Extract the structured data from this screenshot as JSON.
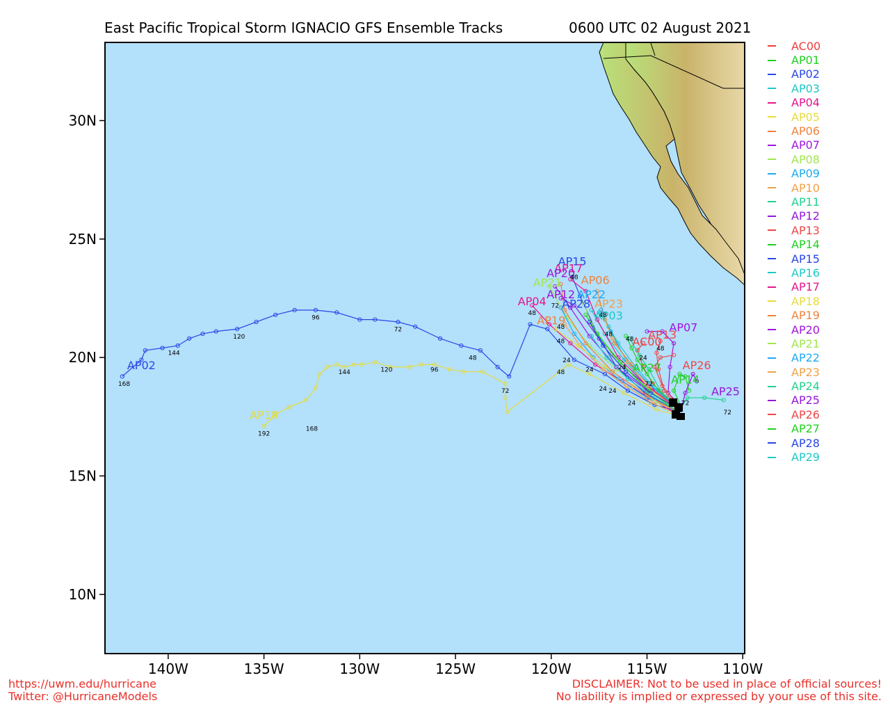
{
  "header": {
    "title": "East Pacific Tropical Storm IGNACIO GFS Ensemble Tracks",
    "datetime": "0600 UTC 02 August 2021"
  },
  "map": {
    "lon_range": [
      -143.3,
      -109.9
    ],
    "lat_range": [
      7.5,
      33.3
    ],
    "ocean_color": "#b3e0fb",
    "lon_ticks": [
      {
        "value": -140,
        "label": "140W"
      },
      {
        "value": -135,
        "label": "135W"
      },
      {
        "value": -130,
        "label": "130W"
      },
      {
        "value": -125,
        "label": "125W"
      },
      {
        "value": -120,
        "label": "120W"
      },
      {
        "value": -115,
        "label": "115W"
      },
      {
        "value": -110,
        "label": "110W"
      }
    ],
    "lat_ticks": [
      {
        "value": 10,
        "label": "10N"
      },
      {
        "value": 15,
        "label": "15N"
      },
      {
        "value": 20,
        "label": "20N"
      },
      {
        "value": 25,
        "label": "25N"
      },
      {
        "value": 30,
        "label": "30N"
      }
    ]
  },
  "legend": [
    {
      "name": "AC00",
      "color": "#f03c3c"
    },
    {
      "name": "AP01",
      "color": "#1ed21e"
    },
    {
      "name": "AP02",
      "color": "#2846e6"
    },
    {
      "name": "AP03",
      "color": "#1ec8c8"
    },
    {
      "name": "AP04",
      "color": "#e6148c"
    },
    {
      "name": "AP05",
      "color": "#e6dc3c"
    },
    {
      "name": "AP06",
      "color": "#f0823c"
    },
    {
      "name": "AP07",
      "color": "#a014dc"
    },
    {
      "name": "AP08",
      "color": "#a0e650"
    },
    {
      "name": "AP09",
      "color": "#1eaaf0"
    },
    {
      "name": "AP10",
      "color": "#f0a046"
    },
    {
      "name": "AP11",
      "color": "#1ed28c"
    },
    {
      "name": "AP12",
      "color": "#9614dc"
    },
    {
      "name": "AP13",
      "color": "#f04646"
    },
    {
      "name": "AP14",
      "color": "#1ed21e"
    },
    {
      "name": "AP15",
      "color": "#2846e6"
    },
    {
      "name": "AP16",
      "color": "#1ec8c8"
    },
    {
      "name": "AP17",
      "color": "#e6148c"
    },
    {
      "name": "AP18",
      "color": "#e6dc3c"
    },
    {
      "name": "AP19",
      "color": "#f0823c"
    },
    {
      "name": "AP20",
      "color": "#a014dc"
    },
    {
      "name": "AP21",
      "color": "#a0e650"
    },
    {
      "name": "AP22",
      "color": "#1eaaf0"
    },
    {
      "name": "AP23",
      "color": "#f0a046"
    },
    {
      "name": "AP24",
      "color": "#1ed28c"
    },
    {
      "name": "AP25",
      "color": "#9614dc"
    },
    {
      "name": "AP26",
      "color": "#f04646"
    },
    {
      "name": "AP27",
      "color": "#1ed21e"
    },
    {
      "name": "AP28",
      "color": "#2846e6"
    },
    {
      "name": "AP29",
      "color": "#1ec8c8"
    }
  ],
  "track_labels": [
    {
      "name": "AP02",
      "lon": -141.4,
      "lat": 19.5,
      "color": "#2846e6"
    },
    {
      "name": "AP18",
      "lon": -135.0,
      "lat": 17.4,
      "color": "#e6dc3c"
    },
    {
      "name": "AP15",
      "lon": -118.9,
      "lat": 23.9,
      "color": "#2846e6"
    },
    {
      "name": "AP17",
      "lon": -119.1,
      "lat": 23.6,
      "color": "#e6148c"
    },
    {
      "name": "AP20",
      "lon": -119.5,
      "lat": 23.4,
      "color": "#a014dc"
    },
    {
      "name": "AP06",
      "lon": -117.7,
      "lat": 23.1,
      "color": "#f0823c"
    },
    {
      "name": "AP21",
      "lon": -120.2,
      "lat": 23.0,
      "color": "#a0e650"
    },
    {
      "name": "AP12",
      "lon": -119.5,
      "lat": 22.5,
      "color": "#9614dc"
    },
    {
      "name": "AP22",
      "lon": -117.9,
      "lat": 22.5,
      "color": "#1eaaf0"
    },
    {
      "name": "AP04",
      "lon": -121.0,
      "lat": 22.2,
      "color": "#e6148c"
    },
    {
      "name": "AP28",
      "lon": -118.7,
      "lat": 22.1,
      "color": "#2846e6"
    },
    {
      "name": "AP23",
      "lon": -117.0,
      "lat": 22.1,
      "color": "#f0a046"
    },
    {
      "name": "AP03",
      "lon": -117.0,
      "lat": 21.6,
      "color": "#1ec8c8"
    },
    {
      "name": "AP19",
      "lon": -120.0,
      "lat": 21.4,
      "color": "#f0823c"
    },
    {
      "name": "AP07",
      "lon": -113.1,
      "lat": 21.1,
      "color": "#a014dc"
    },
    {
      "name": "AP13",
      "lon": -114.2,
      "lat": 20.8,
      "color": "#f04646"
    },
    {
      "name": "AC00",
      "lon": -115.0,
      "lat": 20.5,
      "color": "#f03c3c"
    },
    {
      "name": "AP26",
      "lon": -112.4,
      "lat": 19.5,
      "color": "#f04646"
    },
    {
      "name": "AP27",
      "lon": -115.0,
      "lat": 19.4,
      "color": "#1ed21e"
    },
    {
      "name": "AP14",
      "lon": -113.0,
      "lat": 18.9,
      "color": "#1ed21e"
    },
    {
      "name": "AP25",
      "lon": -110.9,
      "lat": 18.4,
      "color": "#9614dc"
    }
  ],
  "forecast_hours": [
    {
      "text": "168",
      "lon": -142.3,
      "lat": 18.8
    },
    {
      "text": "144",
      "lon": -139.7,
      "lat": 20.1
    },
    {
      "text": "120",
      "lon": -136.3,
      "lat": 20.8
    },
    {
      "text": "96",
      "lon": -132.3,
      "lat": 21.6
    },
    {
      "text": "72",
      "lon": -128.0,
      "lat": 21.1
    },
    {
      "text": "48",
      "lon": -124.1,
      "lat": 19.9
    },
    {
      "text": "72",
      "lon": -122.4,
      "lat": 18.5
    },
    {
      "text": "144",
      "lon": -130.8,
      "lat": 19.3
    },
    {
      "text": "120",
      "lon": -128.6,
      "lat": 19.4
    },
    {
      "text": "96",
      "lon": -126.1,
      "lat": 19.4
    },
    {
      "text": "168",
      "lon": -132.5,
      "lat": 16.9
    },
    {
      "text": "192",
      "lon": -135.0,
      "lat": 16.7
    },
    {
      "text": "48",
      "lon": -119.5,
      "lat": 19.3
    },
    {
      "text": "48",
      "lon": -119.5,
      "lat": 20.6
    },
    {
      "text": "24",
      "lon": -119.2,
      "lat": 19.8
    },
    {
      "text": "24",
      "lon": -117.3,
      "lat": 18.6
    },
    {
      "text": "24",
      "lon": -115.8,
      "lat": 18.0
    },
    {
      "text": "24",
      "lon": -115.2,
      "lat": 19.9
    },
    {
      "text": "48",
      "lon": -114.3,
      "lat": 20.3
    },
    {
      "text": "72",
      "lon": -114.9,
      "lat": 18.8
    },
    {
      "text": "72",
      "lon": -113.0,
      "lat": 18.0
    },
    {
      "text": "72",
      "lon": -110.8,
      "lat": 17.6
    },
    {
      "text": "48",
      "lon": -121.0,
      "lat": 21.8
    },
    {
      "text": "48",
      "lon": -119.5,
      "lat": 21.2
    },
    {
      "text": "48",
      "lon": -117.3,
      "lat": 21.7
    },
    {
      "text": "48",
      "lon": -117.0,
      "lat": 20.9
    },
    {
      "text": "48",
      "lon": -118.8,
      "lat": 23.3
    },
    {
      "text": "72",
      "lon": -119.8,
      "lat": 22.1
    },
    {
      "text": "48",
      "lon": -115.9,
      "lat": 20.7
    },
    {
      "text": "24",
      "lon": -116.8,
      "lat": 18.5
    },
    {
      "text": "24",
      "lon": -118.0,
      "lat": 19.4
    },
    {
      "text": "24",
      "lon": -116.3,
      "lat": 19.5
    }
  ],
  "footer": {
    "url": "https://uwm.edu/hurricane",
    "twitter": "Twitter: @HurricaneModels",
    "disclaimer1": "DISCLAIMER: Not to be used in place of official sources!",
    "disclaimer2": "No liability is implied or expressed by your use of this site."
  }
}
